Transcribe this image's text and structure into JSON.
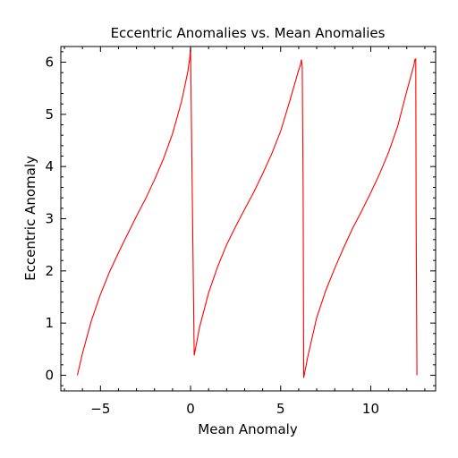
{
  "chart_data": {
    "type": "line",
    "title": "Eccentric Anomalies vs. Mean Anomalies",
    "xlabel": "Mean Anomaly",
    "ylabel": "Eccentric Anomaly",
    "xlim": [
      -7.2,
      13.6
    ],
    "ylim": [
      -0.3,
      6.3
    ],
    "xticks": [
      -5,
      0,
      5,
      10
    ],
    "xtick_labels": [
      "−5",
      "0",
      "5",
      "10"
    ],
    "yticks": [
      0,
      1,
      2,
      3,
      4,
      5,
      6
    ],
    "ytick_labels": [
      "0",
      "1",
      "2",
      "3",
      "4",
      "5",
      "6"
    ],
    "x_minor_step": 1,
    "y_minor_step": 0.2,
    "grid": false,
    "legend": "none",
    "line_color": "#ff0000",
    "series": [
      {
        "x": [
          -6.28,
          -6.0,
          -5.5,
          -5.0,
          -4.5,
          -4.0,
          -3.5,
          -3.0,
          -2.5,
          -2.0,
          -1.5,
          -1.0,
          -0.5,
          -0.15,
          -0.1,
          -0.05,
          0.0,
          0.2,
          0.5,
          1.0,
          1.5,
          2.0,
          2.5,
          3.0,
          3.5,
          4.0,
          4.5,
          5.0,
          5.5,
          6.0,
          6.1,
          6.15,
          6.2,
          6.25,
          6.28,
          6.5,
          7.0,
          7.5,
          8.0,
          8.5,
          9.0,
          9.5,
          10.0,
          10.5,
          11.0,
          11.5,
          12.0,
          12.4,
          12.45,
          12.5,
          12.52,
          12.56
        ],
        "y": [
          0.0,
          0.42,
          1.05,
          1.55,
          1.98,
          2.35,
          2.7,
          3.05,
          3.38,
          3.75,
          4.15,
          4.63,
          5.25,
          5.82,
          5.95,
          6.05,
          6.28,
          0.38,
          0.92,
          1.58,
          2.08,
          2.5,
          2.85,
          3.18,
          3.5,
          3.86,
          4.24,
          4.68,
          5.25,
          5.85,
          5.95,
          6.05,
          5.9,
          3.5,
          -0.05,
          0.35,
          1.1,
          1.62,
          2.05,
          2.45,
          2.82,
          3.15,
          3.5,
          3.87,
          4.28,
          4.78,
          5.45,
          5.95,
          6.05,
          6.06,
          3.0,
          0.0
        ]
      }
    ]
  }
}
